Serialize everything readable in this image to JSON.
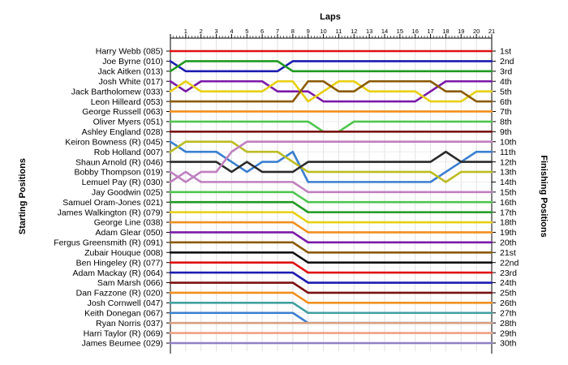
{
  "chart_data": {
    "type": "line",
    "title": "Laps",
    "ylabel_left": "Starting Positions",
    "ylabel_right": "Finishing Positions",
    "x": [
      0,
      1,
      2,
      3,
      4,
      5,
      6,
      7,
      8,
      9,
      10,
      11,
      12,
      13,
      14,
      15,
      16,
      17,
      18,
      19,
      20,
      21
    ],
    "xticks": [
      "1",
      "2",
      "3",
      "4",
      "5",
      "6",
      "7",
      "8",
      "9",
      "10",
      "11",
      "12",
      "13",
      "14",
      "15",
      "16",
      "17",
      "18",
      "19",
      "20",
      "21"
    ],
    "drivers": [
      "Harry Webb (085)",
      "Joe Byrne (010)",
      "Jack Aitken (013)",
      "Josh White (017)",
      "Jack Bartholomew (033)",
      "Leon Hilleard (053)",
      "George Russell (063)",
      "Oliver Myers (051)",
      "Ashley England (028)",
      "Keiron Bowness (R) (045)",
      "Rob Holland (007)",
      "Shaun Arnold (R) (046)",
      "Bobby Thompson (019)",
      "Lemuel Pay (R) (030)",
      "Jay Goodwin (025)",
      "Samuel Oram-Jones (021)",
      "James Walkington (R) (079)",
      "George Line (038)",
      "Adam Glear (050)",
      "Fergus Greensmith (R) (091)",
      "Zubair Houque (008)",
      "Ben Hingeley (R) (077)",
      "Adam Mackay (R) (064)",
      "Sam Marsh (066)",
      "Dan Fazzone (R) (020)",
      "Josh Cornwell (047)",
      "Keith Donegan (067)",
      "Ryan Norris (037)",
      "Harri Taylor (R) (069)",
      "James Beumee (029)"
    ],
    "finish_labels": [
      "1st",
      "2nd",
      "3rd",
      "4th",
      "5th",
      "6th",
      "7th",
      "8th",
      "9th",
      "10th",
      "11th",
      "12th",
      "13th",
      "14th",
      "15th",
      "16th",
      "17th",
      "18th",
      "19th",
      "20th",
      "21st",
      "22nd",
      "23rd",
      "24th",
      "25th",
      "26th",
      "27th",
      "28th",
      "29th",
      "30th"
    ],
    "series": [
      {
        "color": "#e01010",
        "positions": [
          1,
          1,
          1,
          1,
          1,
          1,
          1,
          1,
          1,
          1,
          1,
          1,
          1,
          1,
          1,
          1,
          1,
          1,
          1,
          1,
          1,
          1
        ]
      },
      {
        "color": "#1c1cb0",
        "positions": [
          2,
          3,
          3,
          3,
          3,
          3,
          3,
          3,
          2,
          2,
          2,
          2,
          2,
          2,
          2,
          2,
          2,
          2,
          2,
          2,
          2,
          2
        ]
      },
      {
        "color": "#1f9a1f",
        "positions": [
          3,
          2,
          2,
          2,
          2,
          2,
          2,
          2,
          3,
          3,
          3,
          3,
          3,
          3,
          3,
          3,
          3,
          3,
          3,
          3,
          3,
          3
        ]
      },
      {
        "color": "#7a1aa8",
        "positions": [
          4,
          5,
          4,
          4,
          4,
          4,
          4,
          5,
          5,
          5,
          6,
          6,
          6,
          6,
          6,
          6,
          6,
          5,
          4,
          4,
          4,
          4
        ]
      },
      {
        "color": "#e7d010",
        "positions": [
          5,
          4,
          5,
          5,
          5,
          5,
          5,
          4,
          4,
          6,
          5,
          4,
          4,
          5,
          5,
          5,
          5,
          6,
          6,
          6,
          5,
          5
        ]
      },
      {
        "color": "#8b5a00",
        "positions": [
          6,
          6,
          6,
          6,
          6,
          6,
          6,
          6,
          6,
          4,
          4,
          5,
          5,
          4,
          4,
          4,
          4,
          4,
          5,
          5,
          6,
          6
        ]
      },
      {
        "color": "#f0901c",
        "positions": [
          7,
          7,
          7,
          7,
          7,
          7,
          7,
          7,
          7,
          7,
          7,
          7,
          7,
          7,
          7,
          7,
          7,
          7,
          7,
          7,
          7,
          7
        ]
      },
      {
        "color": "#4ec64e",
        "positions": [
          8,
          8,
          8,
          8,
          8,
          8,
          8,
          8,
          8,
          8,
          9,
          9,
          8,
          8,
          8,
          8,
          8,
          8,
          8,
          8,
          8,
          8
        ]
      },
      {
        "color": "#7b1010",
        "positions": [
          9,
          9,
          9,
          9,
          9,
          9,
          9,
          9,
          9,
          9,
          9,
          9,
          9,
          9,
          9,
          9,
          9,
          9,
          9,
          9,
          9,
          9
        ]
      },
      {
        "color": "#3a7fd0",
        "positions": [
          10,
          11,
          11,
          11,
          12,
          13,
          12,
          12,
          11,
          14,
          14,
          14,
          14,
          14,
          14,
          14,
          14,
          14,
          13,
          12,
          11,
          11
        ]
      },
      {
        "color": "#bcbc20",
        "positions": [
          11,
          10,
          10,
          10,
          10,
          11,
          11,
          11,
          12,
          13,
          13,
          13,
          13,
          13,
          13,
          13,
          13,
          13,
          14,
          13,
          13,
          13
        ]
      },
      {
        "color": "#2a2a2a",
        "positions": [
          12,
          12,
          12,
          12,
          13,
          12,
          13,
          13,
          13,
          12,
          12,
          12,
          12,
          12,
          12,
          12,
          12,
          12,
          11,
          12,
          12,
          12
        ]
      },
      {
        "color": "#c080c0",
        "positions": [
          13,
          14,
          13,
          13,
          11,
          10,
          10,
          10,
          10,
          10,
          10,
          10,
          10,
          10,
          10,
          10,
          10,
          10,
          10,
          10,
          10,
          10
        ]
      },
      {
        "color": "#c080c0",
        "positions": [
          14,
          13,
          14,
          14,
          14,
          14,
          14,
          14,
          14,
          15,
          15,
          15,
          15,
          15,
          15,
          15,
          15,
          15,
          15,
          15,
          15,
          15
        ]
      },
      {
        "color": "#4ec64e",
        "positions": [
          15,
          15,
          15,
          15,
          15,
          15,
          15,
          15,
          15,
          16,
          16,
          16,
          16,
          16,
          16,
          16,
          16,
          16,
          16,
          16,
          16,
          16
        ]
      },
      {
        "color": "#1f9a1f",
        "positions": [
          16,
          16,
          16,
          16,
          16,
          16,
          16,
          16,
          16,
          17,
          17,
          17,
          17,
          17,
          17,
          17,
          17,
          17,
          17,
          17,
          17,
          17
        ]
      },
      {
        "color": "#e7d010",
        "positions": [
          17,
          17,
          17,
          17,
          17,
          17,
          17,
          17,
          17,
          18,
          18,
          18,
          18,
          18,
          18,
          18,
          18,
          18,
          18,
          18,
          18,
          18
        ]
      },
      {
        "color": "#f0901c",
        "positions": [
          18,
          18,
          18,
          18,
          18,
          18,
          18,
          18,
          18,
          19,
          19,
          19,
          19,
          19,
          19,
          19,
          19,
          19,
          19,
          19,
          19,
          19
        ]
      },
      {
        "color": "#7a1aa8",
        "positions": [
          19,
          19,
          19,
          19,
          19,
          19,
          19,
          19,
          19,
          20,
          20,
          20,
          20,
          20,
          20,
          20,
          20,
          20,
          20,
          20,
          20,
          20
        ]
      },
      {
        "color": "#8b5a00",
        "positions": [
          20,
          20,
          20,
          20,
          20,
          20,
          20,
          20,
          20,
          21,
          21,
          21,
          21,
          21,
          21,
          21,
          21,
          21,
          21,
          21,
          21,
          21
        ]
      },
      {
        "color": "#111111",
        "positions": [
          21,
          21,
          21,
          21,
          21,
          21,
          21,
          21,
          21,
          22,
          22,
          22,
          22,
          22,
          22,
          22,
          22,
          22,
          22,
          22,
          22,
          22
        ]
      },
      {
        "color": "#e01010",
        "positions": [
          22,
          22,
          22,
          22,
          22,
          22,
          22,
          22,
          22,
          23,
          23,
          23,
          23,
          23,
          23,
          23,
          23,
          23,
          23,
          23,
          23,
          23
        ]
      },
      {
        "color": "#1c1cb0",
        "positions": [
          23,
          23,
          23,
          23,
          23,
          23,
          23,
          23,
          23,
          24,
          24,
          24,
          24,
          24,
          24,
          24,
          24,
          24,
          24,
          24,
          24,
          24
        ]
      },
      {
        "color": "#7b1010",
        "positions": [
          24,
          24,
          24,
          24,
          24,
          24,
          24,
          24,
          24,
          25,
          25,
          25,
          25,
          25,
          25,
          25,
          25,
          25,
          25,
          25,
          25,
          25
        ]
      },
      {
        "color": "#f0901c",
        "positions": [
          25,
          25,
          25,
          25,
          25,
          25,
          25,
          25,
          25,
          26,
          26,
          26,
          26,
          26,
          26,
          26,
          26,
          26,
          26,
          26,
          26,
          26
        ]
      },
      {
        "color": "#40a0a0",
        "positions": [
          26,
          26,
          26,
          26,
          26,
          26,
          26,
          26,
          26,
          27,
          27,
          27,
          27,
          27,
          27,
          27,
          27,
          27,
          27,
          27,
          27,
          27
        ]
      },
      {
        "color": "#3a7fd0",
        "positions": [
          27,
          27,
          27,
          27,
          27,
          27,
          27,
          27,
          27,
          28,
          28,
          28,
          28,
          28,
          28,
          28,
          28,
          28,
          28,
          28,
          28,
          28
        ]
      },
      {
        "color": "#d8a080",
        "positions": [
          28,
          28,
          28,
          28,
          28,
          28,
          28,
          28,
          28,
          28,
          28,
          28,
          28,
          28,
          28,
          28,
          28,
          28,
          28,
          28,
          28,
          28
        ]
      },
      {
        "color": "#f0a080",
        "positions": [
          29,
          29,
          29,
          29,
          29,
          29,
          29,
          29,
          29,
          29,
          29,
          29,
          29,
          29,
          29,
          29,
          29,
          29,
          29,
          29,
          29,
          29
        ]
      },
      {
        "color": "#9080c8",
        "positions": [
          30,
          30,
          30,
          30,
          30,
          30,
          30,
          30,
          30,
          30,
          30,
          30,
          30,
          30,
          30,
          30,
          30,
          30,
          30,
          30,
          30,
          30
        ]
      }
    ],
    "grid": true
  }
}
